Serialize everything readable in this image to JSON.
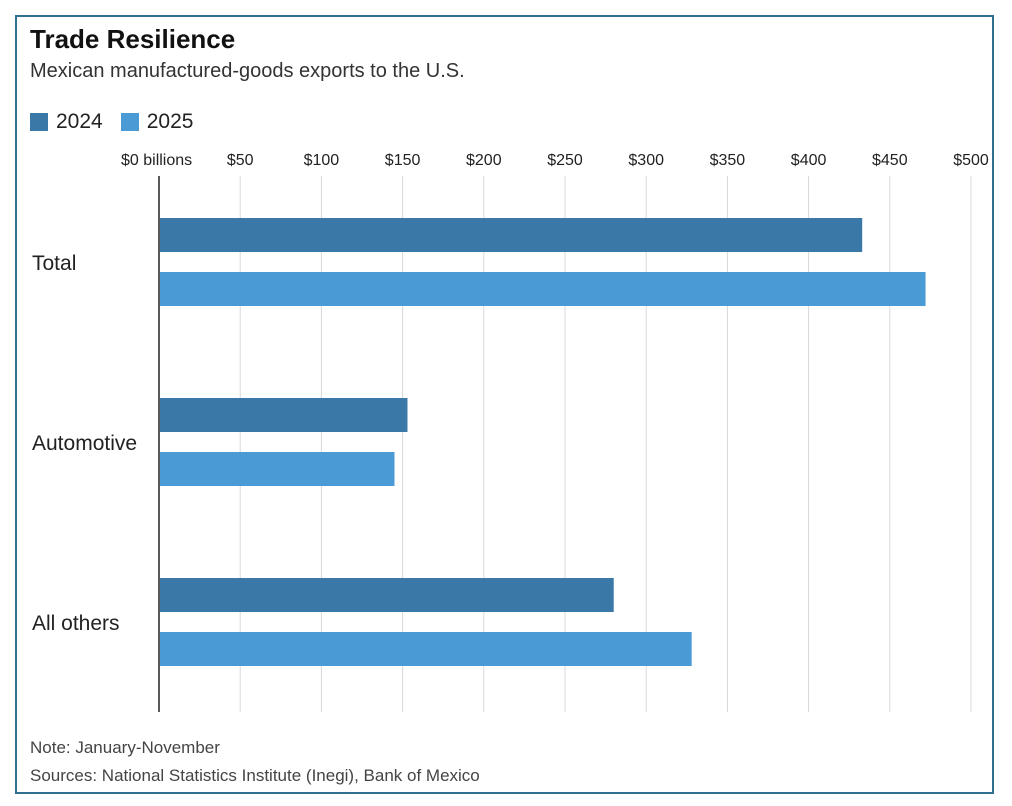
{
  "chart_data": {
    "type": "bar",
    "orientation": "horizontal",
    "title": "Trade Resilience",
    "subtitle": "Mexican manufactured-goods exports to the U.S.",
    "categories": [
      "Total",
      "Automotive",
      "All others"
    ],
    "series": [
      {
        "name": "2024",
        "color": "#3a78a8",
        "values": [
          433,
          153,
          280
        ]
      },
      {
        "name": "2025",
        "color": "#4a9ad6",
        "values": [
          472,
          145,
          328
        ]
      }
    ],
    "xlim": [
      0,
      500
    ],
    "x_ticks": [
      0,
      50,
      100,
      150,
      200,
      250,
      300,
      350,
      400,
      450,
      500
    ],
    "x_tick_labels": [
      "$0 billions",
      "$50",
      "$100",
      "$150",
      "$200",
      "$250",
      "$300",
      "$350",
      "$400",
      "$450",
      "$500"
    ],
    "grid": true,
    "legend_position": "top-left",
    "notes": [
      "Note: January-November",
      "Sources: National Statistics Institute (Inegi), Bank of Mexico"
    ]
  }
}
